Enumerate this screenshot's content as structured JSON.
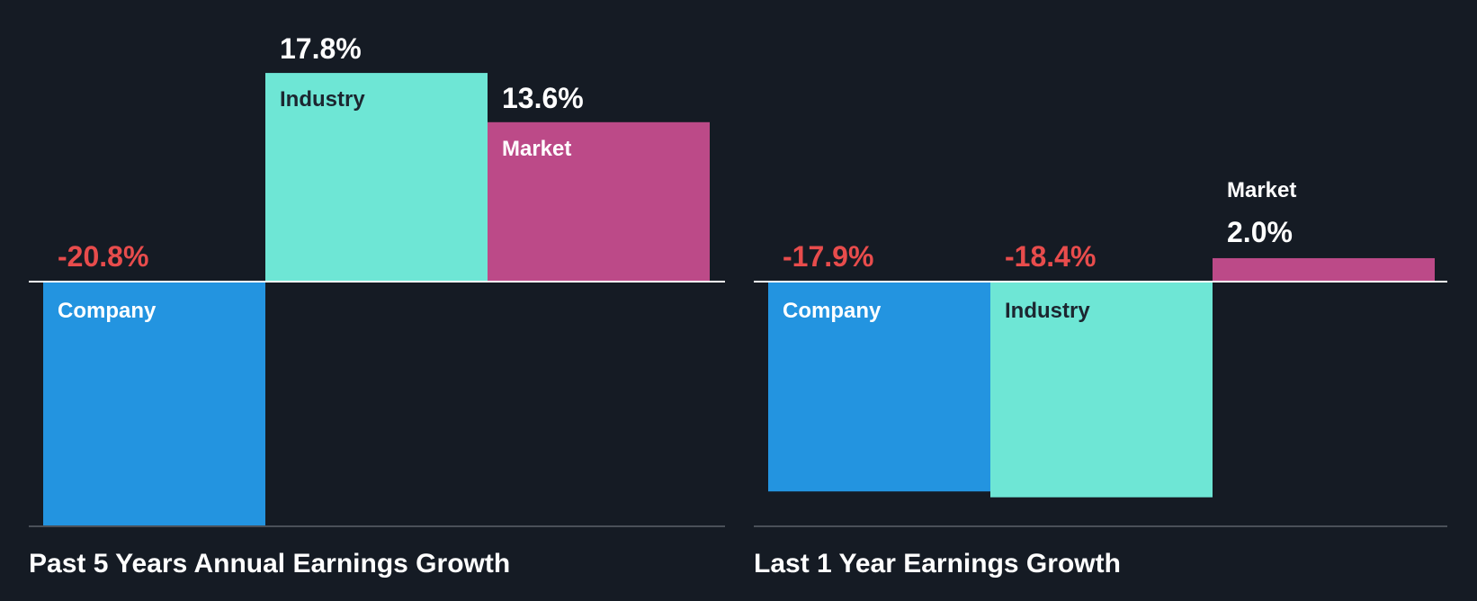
{
  "colors": {
    "background": "#151b24",
    "company": "#2394e0",
    "industry": "#6ee6d5",
    "market": "#bc4a88",
    "negative_text": "#e84c4c",
    "positive_text": "#ffffff",
    "label_on_dark_bar": "#ffffff",
    "label_on_light_bar": "#1c2630",
    "zero_line": "#ffffff",
    "baseline": "#4a5058"
  },
  "chart_data": [
    {
      "type": "bar",
      "title": "Past 5 Years Annual Earnings Growth",
      "categories": [
        "Company",
        "Industry",
        "Market"
      ],
      "values": [
        -20.8,
        17.8,
        13.6
      ],
      "value_labels": [
        "-20.8%",
        "17.8%",
        "13.6%"
      ],
      "unit": "%",
      "ylim": [
        -20.8,
        17.8
      ]
    },
    {
      "type": "bar",
      "title": "Last 1 Year Earnings Growth",
      "categories": [
        "Company",
        "Industry",
        "Market"
      ],
      "values": [
        -17.9,
        -18.4,
        2.0
      ],
      "value_labels": [
        "-17.9%",
        "-18.4%",
        "2.0%"
      ],
      "unit": "%",
      "ylim": [
        -20.8,
        17.8
      ]
    }
  ]
}
